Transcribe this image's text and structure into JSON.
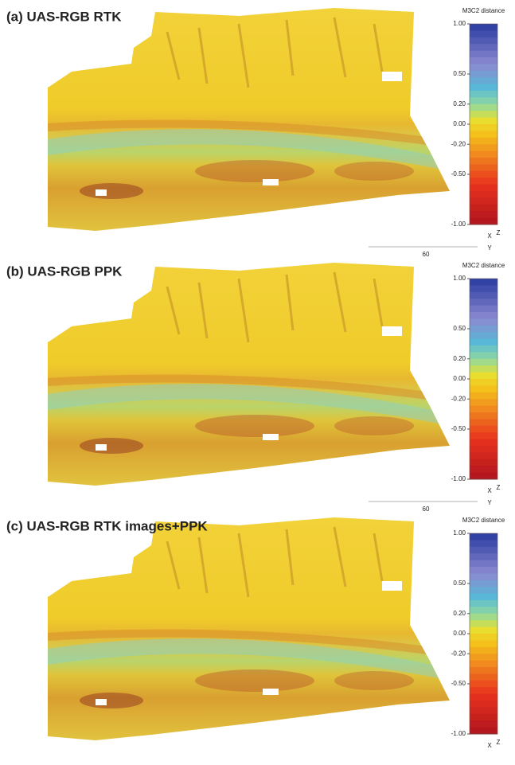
{
  "colorbar": {
    "label": "M3C2 distance",
    "lim": [
      -1,
      1
    ],
    "ticks": [
      {
        "value": 1,
        "label": "1.00"
      },
      {
        "value": 0.5,
        "label": "0.50"
      },
      {
        "value": 0.2,
        "label": "0.20"
      },
      {
        "value": 0,
        "label": "0.00"
      },
      {
        "value": -0.2,
        "label": "-0.20"
      },
      {
        "value": -0.5,
        "label": "-0.50"
      },
      {
        "value": -1,
        "label": "-1.00"
      }
    ]
  },
  "panels": [
    {
      "title": "(a) UAS-RGB RTK",
      "scale_label": "60",
      "triad": [
        "X",
        "Z",
        "Y"
      ]
    },
    {
      "title": "(b) UAS-RGB PPK",
      "scale_label": "60",
      "triad": [
        "X",
        "Z",
        "Y"
      ]
    },
    {
      "title": "(c) UAS-RGB RTK images+PPK",
      "triad": [
        "X",
        "Z"
      ]
    }
  ]
}
